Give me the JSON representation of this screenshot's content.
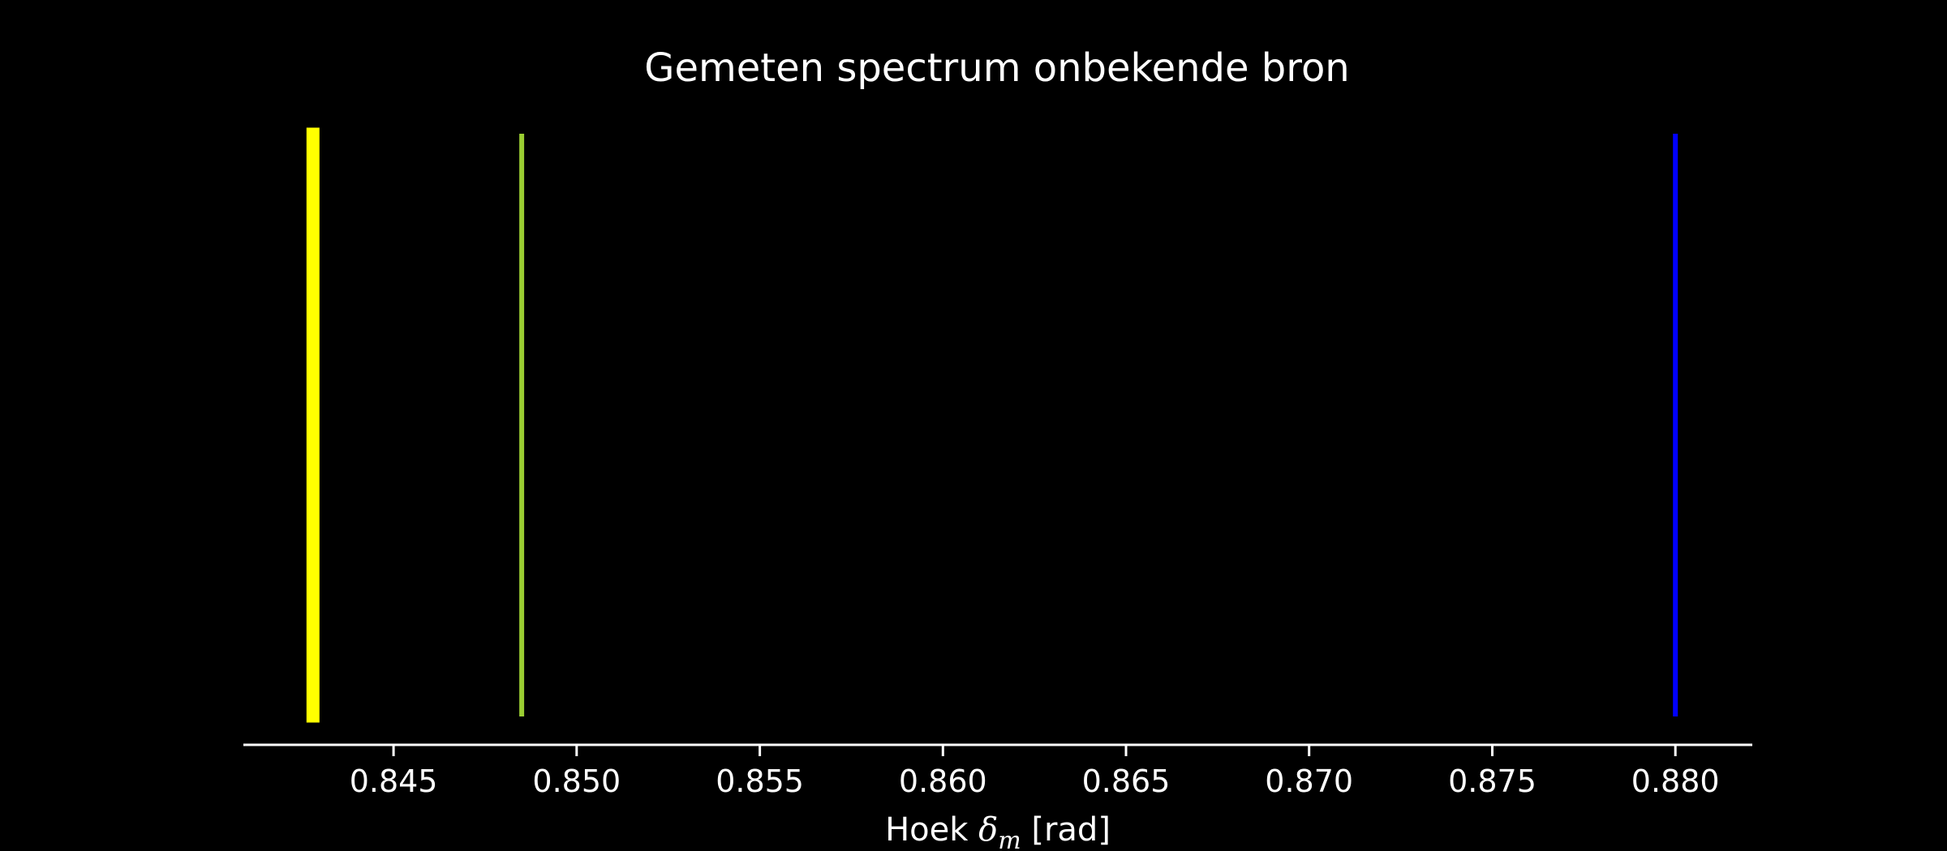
{
  "chart_data": {
    "type": "line",
    "title": "Gemeten spectrum onbekende bron",
    "xlabel": {
      "prefix": "Hoek ",
      "symbol": "δ",
      "subscript": "m",
      "suffix": " [rad]"
    },
    "ylabel": "",
    "xlim": [
      0.8409,
      0.8821
    ],
    "x_ticks": [
      0.845,
      0.85,
      0.855,
      0.86,
      0.865,
      0.87,
      0.875,
      0.88
    ],
    "x_tick_labels": [
      "0.845",
      "0.850",
      "0.855",
      "0.860",
      "0.865",
      "0.870",
      "0.875",
      "0.880"
    ],
    "grid": false,
    "y_axis_visible": false,
    "background": "#000000",
    "axis_color": "#ffffff",
    "lines": [
      {
        "x": 0.8428,
        "color": "#ffff00",
        "weight": "thick",
        "extent": [
          0.01,
          0.99
        ]
      },
      {
        "x": 0.8485,
        "color": "#9acd32",
        "weight": "thin",
        "extent": [
          0.02,
          0.98
        ]
      },
      {
        "x": 0.88,
        "color": "#0000ff",
        "weight": "thin",
        "extent": [
          0.02,
          0.98
        ]
      }
    ]
  }
}
